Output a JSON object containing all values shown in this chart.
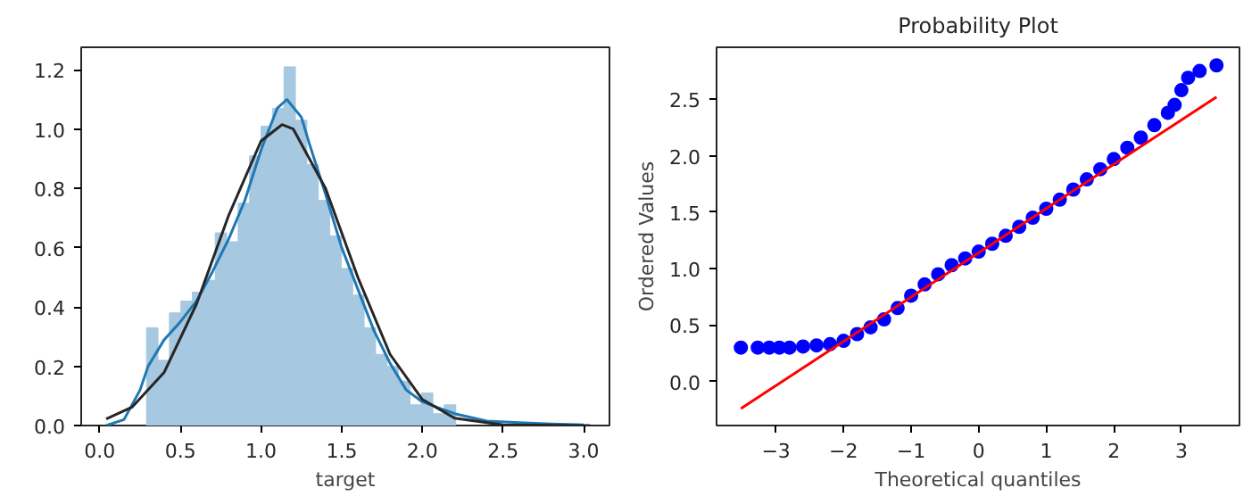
{
  "chart_data": [
    {
      "type": "histogram",
      "xlabel": "target",
      "xlim": [
        -0.115,
        3.16
      ],
      "ylim": [
        0,
        1.276
      ],
      "xticks": [
        {
          "value": 0,
          "label": "0.0"
        },
        0.5,
        {
          "value": 1,
          "label": "1.0"
        },
        1.5,
        {
          "value": 2,
          "label": "2.0"
        },
        2.5,
        {
          "value": 3,
          "label": "3.0"
        }
      ],
      "yticks": [
        {
          "value": 0,
          "label": "0.0"
        },
        0.2,
        0.4,
        0.6,
        0.8,
        {
          "value": 1,
          "label": "1.0"
        },
        1.2
      ],
      "grid": false,
      "series": [
        {
          "color": "#a6c8e0",
          "bins": [
            0.29,
            0.361,
            0.432,
            0.503,
            0.574,
            0.645,
            0.716,
            0.787,
            0.858,
            0.929,
            1.0,
            1.071,
            1.142,
            1.213,
            1.284,
            1.355,
            1.426,
            1.497,
            1.568,
            1.639,
            1.71,
            1.781,
            1.852,
            1.923,
            1.994,
            2.065,
            2.136,
            2.207
          ],
          "values": [
            0.33,
            0.22,
            0.38,
            0.42,
            0.45,
            0.49,
            0.65,
            0.62,
            0.75,
            0.91,
            1.01,
            1.07,
            1.21,
            1.03,
            0.88,
            0.76,
            0.64,
            0.53,
            0.44,
            0.33,
            0.24,
            0.2,
            0.15,
            0.07,
            0.11,
            0.04,
            0.07
          ]
        },
        {
          "type": "line",
          "color": "#1f77b4",
          "x": [
            0.04,
            0.15,
            0.25,
            0.3,
            0.4,
            0.5,
            0.6,
            0.7,
            0.8,
            0.9,
            1.0,
            1.1,
            1.16,
            1.25,
            1.3,
            1.4,
            1.5,
            1.6,
            1.7,
            1.8,
            1.9,
            2.0,
            2.1,
            2.2,
            2.4,
            2.6,
            2.8,
            3.0
          ],
          "values": [
            0.0,
            0.02,
            0.12,
            0.2,
            0.29,
            0.35,
            0.42,
            0.52,
            0.63,
            0.76,
            0.93,
            1.07,
            1.1,
            1.04,
            0.95,
            0.78,
            0.6,
            0.46,
            0.32,
            0.21,
            0.12,
            0.08,
            0.06,
            0.04,
            0.015,
            0.01,
            0.005,
            0.002
          ]
        },
        {
          "type": "line",
          "color": "#262626",
          "x": [
            0.04,
            0.2,
            0.4,
            0.6,
            0.8,
            1.0,
            1.13,
            1.2,
            1.4,
            1.6,
            1.8,
            2.0,
            2.2,
            2.5,
            3.04
          ],
          "values": [
            0.022,
            0.062,
            0.18,
            0.41,
            0.71,
            0.96,
            1.015,
            1.0,
            0.8,
            0.5,
            0.24,
            0.088,
            0.025,
            0.002,
            0.0
          ]
        }
      ]
    },
    {
      "type": "scatter",
      "title": "Probability Plot",
      "xlabel": "Theoretical quantiles",
      "ylabel": "Ordered Values",
      "xlim": [
        -3.88,
        3.86
      ],
      "ylim": [
        -0.39,
        2.96
      ],
      "xticks": [
        {
          "value": -3,
          "label": "−3"
        },
        {
          "value": -2,
          "label": "−2"
        },
        {
          "value": -1,
          "label": "−1"
        },
        0,
        1,
        2,
        3
      ],
      "yticks": [
        {
          "value": 0,
          "label": "0.0"
        },
        0.5,
        {
          "value": 1,
          "label": "1.0"
        },
        1.5,
        {
          "value": 2,
          "label": "2.0"
        },
        2.5
      ],
      "grid": false,
      "marker": "circle",
      "series": [
        {
          "color": "#0000ff",
          "x": [
            -3.52,
            -3.27,
            -3.1,
            -2.95,
            -2.8,
            -2.6,
            -2.4,
            -2.2,
            -2.0,
            -1.8,
            -1.6,
            -1.4,
            -1.2,
            -1.0,
            -0.8,
            -0.6,
            -0.4,
            -0.2,
            0,
            0.2,
            0.4,
            0.6,
            0.8,
            1.0,
            1.2,
            1.4,
            1.6,
            1.8,
            2.0,
            2.2,
            2.4,
            2.6,
            2.8,
            2.9,
            3.0,
            3.1,
            3.27,
            3.52
          ],
          "values": [
            0.3,
            0.3,
            0.3,
            0.3,
            0.3,
            0.31,
            0.32,
            0.33,
            0.36,
            0.42,
            0.48,
            0.55,
            0.65,
            0.76,
            0.86,
            0.95,
            1.03,
            1.09,
            1.15,
            1.22,
            1.29,
            1.37,
            1.45,
            1.53,
            1.61,
            1.7,
            1.79,
            1.88,
            1.97,
            2.07,
            2.16,
            2.27,
            2.38,
            2.45,
            2.58,
            2.69,
            2.75,
            2.8
          ]
        },
        {
          "type": "line",
          "marker": "none",
          "color": "#ff0000",
          "x": [
            -3.52,
            3.52
          ],
          "values": [
            -0.24,
            2.52
          ]
        }
      ]
    }
  ]
}
